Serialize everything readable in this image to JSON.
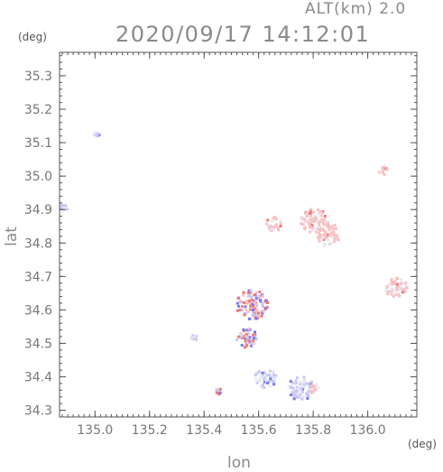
{
  "header": {
    "altitude_label": "ALT(km) 2.0",
    "timestamp": "2020/09/17 14:12:01"
  },
  "axes": {
    "y_unit": "(deg)",
    "x_unit": "(deg)",
    "y_label": "lat",
    "x_label": "lon"
  },
  "chart_data": {
    "type": "heatmap",
    "xlabel": "lon",
    "ylabel": "lat",
    "xlim": [
      134.87,
      136.18
    ],
    "ylim": [
      34.28,
      35.37
    ],
    "x_ticks": [
      135.0,
      135.2,
      135.4,
      135.6,
      135.8,
      136.0
    ],
    "x_tick_labels": [
      "135.0",
      "135.2",
      "135.4",
      "135.6",
      "135.8",
      "136.0"
    ],
    "y_ticks": [
      34.3,
      34.4,
      34.5,
      34.6,
      34.7,
      34.8,
      34.9,
      35.0,
      35.1,
      35.2,
      35.3
    ],
    "y_tick_labels": [
      "34.3",
      "34.4",
      "34.5",
      "34.6",
      "34.7",
      "34.8",
      "34.9",
      "35.0",
      "35.1",
      "35.2",
      "35.3"
    ],
    "colors": {
      "positive": "#f07a7a",
      "negative": "#7a7aee",
      "neutral": "#e6e6f6"
    },
    "echo_regions": [
      {
        "lon": 135.0,
        "lat": 35.13,
        "r": 0.012,
        "sign": -1
      },
      {
        "lon": 134.88,
        "lat": 34.91,
        "r": 0.015,
        "sign": -1
      },
      {
        "lon": 135.8,
        "lat": 34.87,
        "r": 0.05,
        "sign": 1
      },
      {
        "lon": 135.85,
        "lat": 34.83,
        "r": 0.045,
        "sign": 1
      },
      {
        "lon": 135.65,
        "lat": 34.86,
        "r": 0.03,
        "sign": 1
      },
      {
        "lon": 135.57,
        "lat": 34.62,
        "r": 0.06,
        "sign": 0
      },
      {
        "lon": 135.55,
        "lat": 34.52,
        "r": 0.04,
        "sign": 0
      },
      {
        "lon": 135.62,
        "lat": 34.4,
        "r": 0.04,
        "sign": -1
      },
      {
        "lon": 135.75,
        "lat": 34.37,
        "r": 0.05,
        "sign": -1
      },
      {
        "lon": 135.8,
        "lat": 34.37,
        "r": 0.02,
        "sign": 1
      },
      {
        "lon": 136.1,
        "lat": 34.67,
        "r": 0.04,
        "sign": 1
      },
      {
        "lon": 136.05,
        "lat": 35.02,
        "r": 0.02,
        "sign": 1
      },
      {
        "lon": 135.36,
        "lat": 34.52,
        "r": 0.012,
        "sign": -1
      },
      {
        "lon": 135.45,
        "lat": 34.36,
        "r": 0.012,
        "sign": 0
      }
    ]
  }
}
